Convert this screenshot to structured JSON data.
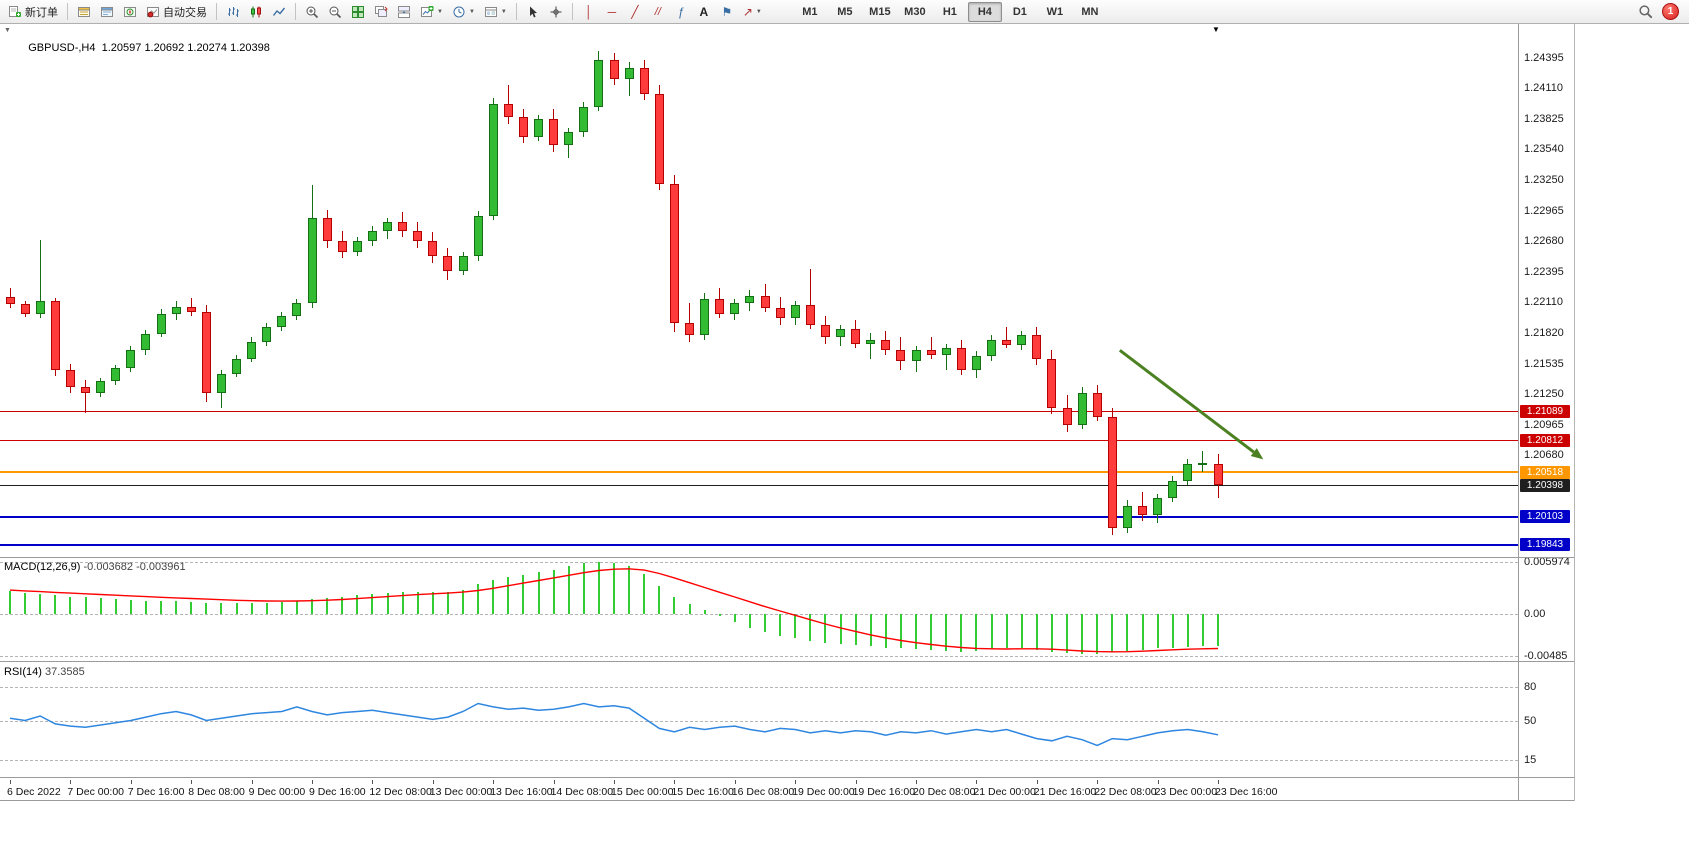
{
  "toolbar": {
    "new_order_label": "新订单",
    "autotrading_label": "自动交易",
    "timeframes": [
      "M1",
      "M5",
      "M15",
      "M30",
      "H1",
      "H4",
      "D1",
      "W1",
      "MN"
    ],
    "active_timeframe": "H4",
    "alert_badge": "1"
  },
  "icons": {
    "caret_down": "▼",
    "one_click_arrow": "▼",
    "end_marker": "▼",
    "fibonacci": "ƒ",
    "text_tool": "A",
    "vline": "│",
    "hline": "─",
    "trendline": "╱",
    "channel": "//",
    "shapes_arrow": "↗",
    "label_flag": "⚑"
  },
  "chart_data": {
    "type": "candlestick",
    "symbol": "GBPUSD-,H4",
    "ohlc_display": {
      "open": "1.20597",
      "high": "1.20692",
      "low": "1.20274",
      "close": "1.20398"
    },
    "price_base": 1.2,
    "pip": 0.0001,
    "candles_pips": [
      [
        216,
        224,
        206,
        209
      ],
      [
        209,
        212,
        197,
        200
      ],
      [
        200,
        269,
        196,
        212
      ],
      [
        212,
        215,
        142,
        148
      ],
      [
        148,
        153,
        126,
        132
      ],
      [
        132,
        138,
        107,
        126
      ],
      [
        126,
        140,
        122,
        137
      ],
      [
        137,
        152,
        134,
        149
      ],
      [
        149,
        170,
        146,
        166
      ],
      [
        166,
        185,
        162,
        181
      ],
      [
        181,
        205,
        178,
        200
      ],
      [
        200,
        212,
        194,
        207
      ],
      [
        207,
        215,
        198,
        202
      ],
      [
        202,
        208,
        118,
        126
      ],
      [
        126,
        148,
        112,
        144
      ],
      [
        144,
        162,
        141,
        158
      ],
      [
        158,
        178,
        155,
        174
      ],
      [
        174,
        192,
        170,
        188
      ],
      [
        188,
        202,
        184,
        198
      ],
      [
        198,
        214,
        194,
        210
      ],
      [
        210,
        321,
        206,
        290
      ],
      [
        290,
        297,
        262,
        268
      ],
      [
        268,
        278,
        252,
        258
      ],
      [
        258,
        272,
        254,
        268
      ],
      [
        268,
        282,
        264,
        278
      ],
      [
        278,
        290,
        270,
        286
      ],
      [
        286,
        295,
        272,
        278
      ],
      [
        278,
        286,
        262,
        268
      ],
      [
        268,
        277,
        248,
        254
      ],
      [
        254,
        262,
        232,
        240
      ],
      [
        240,
        258,
        236,
        254
      ],
      [
        254,
        296,
        250,
        292
      ],
      [
        292,
        402,
        288,
        396
      ],
      [
        396,
        414,
        378,
        384
      ],
      [
        384,
        392,
        360,
        366
      ],
      [
        366,
        386,
        362,
        382
      ],
      [
        382,
        392,
        352,
        358
      ],
      [
        358,
        374,
        346,
        370
      ],
      [
        370,
        398,
        366,
        394
      ],
      [
        394,
        446,
        390,
        438
      ],
      [
        438,
        444,
        414,
        420
      ],
      [
        420,
        436,
        404,
        430
      ],
      [
        430,
        438,
        400,
        406
      ],
      [
        406,
        414,
        316,
        322
      ],
      [
        322,
        330,
        183,
        192
      ],
      [
        192,
        210,
        174,
        180
      ],
      [
        180,
        220,
        176,
        214
      ],
      [
        214,
        224,
        196,
        200
      ],
      [
        200,
        214,
        194,
        210
      ],
      [
        210,
        222,
        203,
        217
      ],
      [
        217,
        228,
        202,
        206
      ],
      [
        206,
        216,
        190,
        196
      ],
      [
        196,
        212,
        190,
        208
      ],
      [
        208,
        242,
        186,
        190
      ],
      [
        190,
        198,
        172,
        178
      ],
      [
        178,
        190,
        170,
        186
      ],
      [
        186,
        194,
        168,
        172
      ],
      [
        172,
        182,
        158,
        176
      ],
      [
        176,
        184,
        162,
        166
      ],
      [
        166,
        178,
        148,
        156
      ],
      [
        156,
        170,
        146,
        166
      ],
      [
        166,
        178,
        158,
        162
      ],
      [
        162,
        172,
        148,
        168
      ],
      [
        168,
        176,
        143,
        148
      ],
      [
        148,
        165,
        140,
        161
      ],
      [
        161,
        180,
        156,
        176
      ],
      [
        176,
        188,
        168,
        171
      ],
      [
        171,
        184,
        166,
        180
      ],
      [
        180,
        188,
        152,
        158
      ],
      [
        158,
        166,
        106,
        112
      ],
      [
        112,
        124,
        90,
        96
      ],
      [
        96,
        132,
        92,
        126
      ],
      [
        126,
        134,
        100,
        104
      ],
      [
        104,
        112,
        -7,
        0
      ],
      [
        0,
        26,
        -5,
        20
      ],
      [
        20,
        33,
        6,
        12
      ],
      [
        12,
        32,
        4,
        28
      ],
      [
        28,
        48,
        24,
        44
      ],
      [
        44,
        64,
        40,
        60
      ],
      [
        60,
        72,
        52,
        61
      ],
      [
        59.7,
        69.2,
        27.4,
        39.8
      ]
    ],
    "price_axis_ticks": [
      "1.24395",
      "1.24110",
      "1.23825",
      "1.23540",
      "1.23250",
      "1.22965",
      "1.22680",
      "1.22395",
      "1.22110",
      "1.21820",
      "1.21535",
      "1.21250",
      "1.20965",
      "1.20680"
    ],
    "horizontal_lines": [
      {
        "price": 1.21089,
        "label": "1.21089",
        "color": "#cc0000",
        "thickness": 1
      },
      {
        "price": 1.20812,
        "label": "1.20812",
        "color": "#cc0000",
        "thickness": 1
      },
      {
        "price": 1.20518,
        "label": "1.20518",
        "color": "#ff9800",
        "thickness": 2
      },
      {
        "price": 1.20398,
        "label": "1.20398",
        "color": "#1f1f1f",
        "thickness": 1
      },
      {
        "price": 1.20103,
        "label": "1.20103",
        "color": "#0000c8",
        "thickness": 2
      },
      {
        "price": 1.19843,
        "label": "1.19843",
        "color": "#0000c8",
        "thickness": 2
      }
    ],
    "trend_arrow": {
      "from_bar": 73.5,
      "from_price": 1.2166,
      "to_bar": 83,
      "to_price": 1.2064,
      "color": "#4c8122"
    },
    "time_axis_labels": [
      "6 Dec 2022",
      "7 Dec 00:00",
      "7 Dec 16:00",
      "8 Dec 08:00",
      "9 Dec 00:00",
      "9 Dec 16:00",
      "12 Dec 08:00",
      "13 Dec 00:00",
      "13 Dec 16:00",
      "14 Dec 08:00",
      "15 Dec 00:00",
      "15 Dec 16:00",
      "16 Dec 08:00",
      "19 Dec 00:00",
      "19 Dec 16:00",
      "20 Dec 08:00",
      "21 Dec 00:00",
      "21 Dec 16:00",
      "22 Dec 08:00",
      "23 Dec 00:00",
      "23 Dec 16:00"
    ],
    "colors": {
      "up": "#33bb33",
      "up_border": "#157015",
      "down": "#ff3b3b",
      "down_border": "#b40000",
      "background": "#ffffff"
    }
  },
  "macd": {
    "name": "MACD(12,26,9)",
    "value_main": "-0.003682",
    "value_signal": "-0.003961",
    "scale_labels": {
      "max": "0.005974",
      "zero": "0.00",
      "min": "-0.00485"
    },
    "scale": {
      "max": 5.974,
      "min": -4.85
    },
    "unit": 0.001,
    "histogram": [
      2.6,
      2.45,
      2.3,
      2.15,
      2.0,
      1.9,
      1.8,
      1.7,
      1.62,
      1.55,
      1.5,
      1.45,
      1.38,
      1.3,
      1.25,
      1.22,
      1.25,
      1.32,
      1.42,
      1.55,
      1.7,
      1.85,
      2.0,
      2.15,
      2.3,
      2.42,
      2.5,
      2.55,
      2.5,
      2.55,
      2.75,
      3.4,
      3.9,
      4.2,
      4.5,
      4.8,
      5.1,
      5.5,
      5.85,
      5.95,
      5.9,
      5.5,
      4.6,
      3.2,
      2.0,
      1.2,
      0.5,
      -0.2,
      -0.9,
      -1.6,
      -2.1,
      -2.5,
      -2.8,
      -3.1,
      -3.3,
      -3.5,
      -3.6,
      -3.7,
      -3.85,
      -3.95,
      -4.05,
      -4.15,
      -4.3,
      -4.35,
      -4.2,
      -4.05,
      -3.95,
      -3.9,
      -4.1,
      -4.35,
      -4.5,
      -4.6,
      -4.55,
      -4.4,
      -4.25,
      -4.1,
      -3.95,
      -3.85,
      -3.75,
      -3.7,
      -3.682
    ],
    "signal": [
      2.75,
      2.66,
      2.57,
      2.48,
      2.4,
      2.32,
      2.24,
      2.16,
      2.08,
      2.0,
      1.92,
      1.85,
      1.78,
      1.71,
      1.64,
      1.58,
      1.53,
      1.5,
      1.48,
      1.49,
      1.53,
      1.59,
      1.67,
      1.77,
      1.88,
      2.0,
      2.12,
      2.23,
      2.32,
      2.4,
      2.52,
      2.7,
      2.95,
      3.25,
      3.55,
      3.85,
      4.15,
      4.45,
      4.75,
      5.0,
      5.15,
      5.2,
      5.05,
      4.65,
      4.15,
      3.6,
      3.05,
      2.5,
      1.95,
      1.4,
      0.85,
      0.35,
      -0.15,
      -0.65,
      -1.15,
      -1.6,
      -2.0,
      -2.4,
      -2.75,
      -3.05,
      -3.3,
      -3.5,
      -3.7,
      -3.85,
      -3.95,
      -4.0,
      -4.02,
      -4.0,
      -4.0,
      -4.05,
      -4.15,
      -4.25,
      -4.32,
      -4.35,
      -4.33,
      -4.28,
      -4.2,
      -4.12,
      -4.05,
      -4.0,
      -3.961
    ],
    "colors": {
      "histogram": "#33cc33",
      "signal": "#ff0000"
    }
  },
  "rsi": {
    "name": "RSI(14)",
    "value": "37.3585",
    "levels": [
      {
        "value": 80,
        "label": "80"
      },
      {
        "value": 50,
        "label": "50"
      },
      {
        "value": 15,
        "label": "15"
      }
    ],
    "range": [
      0,
      100
    ],
    "values": [
      52,
      50,
      54,
      47,
      45,
      44,
      46,
      48,
      50,
      53,
      56,
      58,
      55,
      50,
      52,
      54,
      56,
      57,
      58,
      62,
      58,
      55,
      57,
      58,
      59,
      57,
      55,
      53,
      51,
      53,
      58,
      65,
      62,
      60,
      61,
      59,
      60,
      62,
      65,
      62,
      63,
      61,
      52,
      43,
      40,
      44,
      42,
      44,
      45,
      42,
      40,
      43,
      42,
      39,
      41,
      39,
      41,
      40,
      37,
      40,
      39,
      41,
      38,
      40,
      42,
      40,
      42,
      38,
      34,
      32,
      36,
      33,
      28,
      34,
      33,
      36,
      39,
      41,
      42,
      40,
      37.36
    ],
    "color": "#2e86e0"
  }
}
